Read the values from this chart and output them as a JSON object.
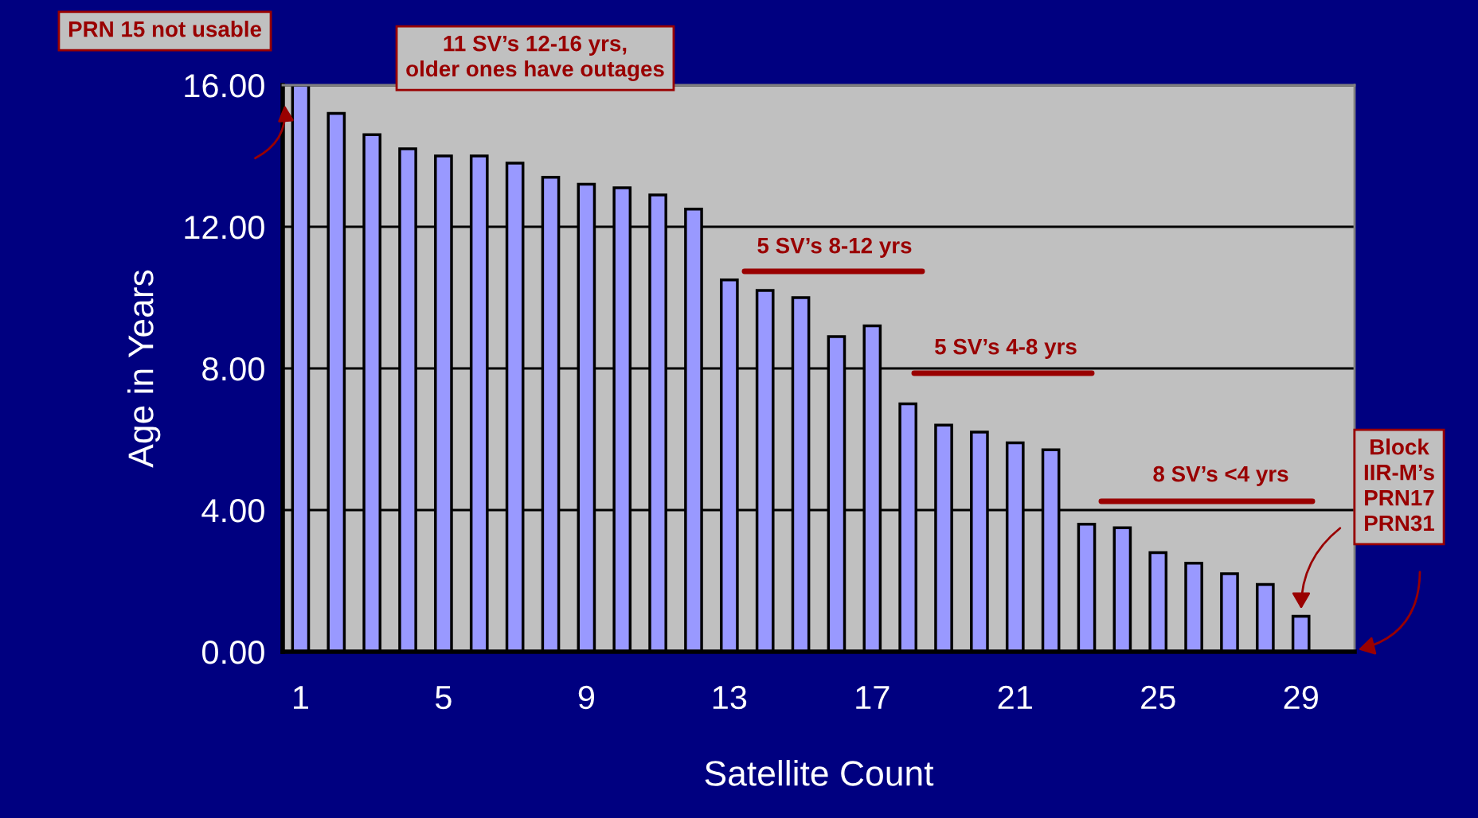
{
  "chart_data": {
    "type": "bar",
    "xlabel": "Satellite Count",
    "ylabel": "Age in Years",
    "categories": [
      "1",
      null,
      null,
      null,
      "5",
      null,
      null,
      null,
      "9",
      null,
      null,
      null,
      "13",
      null,
      null,
      null,
      "17",
      null,
      null,
      null,
      "21",
      null,
      null,
      null,
      "25",
      null,
      null,
      null,
      "29",
      null
    ],
    "values": [
      16.0,
      15.2,
      14.6,
      14.2,
      14.0,
      14.0,
      13.8,
      13.4,
      13.2,
      13.1,
      12.9,
      12.5,
      10.5,
      10.2,
      10.0,
      8.9,
      9.2,
      7.0,
      6.4,
      6.2,
      5.9,
      5.7,
      3.6,
      3.5,
      2.8,
      2.5,
      2.2,
      1.9,
      1.0,
      null
    ],
    "color": "#9999ff",
    "ylim": [
      0,
      16
    ],
    "yticks": [
      {
        "value": 0,
        "label": "0.00"
      },
      {
        "value": 4,
        "label": "4.00"
      },
      {
        "value": 8,
        "label": "8.00"
      },
      {
        "value": 12,
        "label": "12.00"
      },
      {
        "value": 16,
        "label": "16.00"
      }
    ],
    "grid": "y",
    "annotations": [
      {
        "text": "PRN 15 not usable",
        "x": "1",
        "y": 16.0
      },
      "11 SV’s 12-16 yrs, older ones have outages",
      "5 SV’s 8-12 yrs",
      "5 SV’s 4-8 yrs",
      "8 SV’s <4 yrs",
      "Block IIR-M’s PRN17 PRN31"
    ]
  }
}
